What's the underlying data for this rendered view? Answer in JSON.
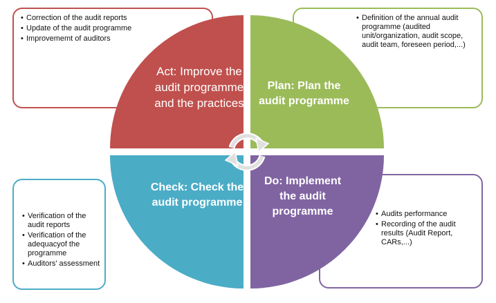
{
  "colors": {
    "act": "#c0504d",
    "plan": "#9bbb59",
    "check": "#4bacc6",
    "do": "#8064a2"
  },
  "quadrants": {
    "act": {
      "label": "Act: Improve the audit programme and the practices"
    },
    "plan": {
      "label": "Plan: Plan the audit programme"
    },
    "check": {
      "label": "Check: Check the audit programme"
    },
    "do": {
      "label": "Do: Implement the audit programme"
    }
  },
  "boxes": {
    "act": [
      "Correction of the audit reports",
      "Update of the audit programme",
      "Improvememt of auditors"
    ],
    "plan": [
      "Definition of the annual audit programme (audited unit/organization, audit scope, audit team, foreseen period,...)"
    ],
    "check": [
      "Verification of the audit reports",
      "Verification of the adequacyof the programme",
      "Auditors'  assessment"
    ],
    "do": [
      "Audits performance",
      "Recording of the audit results (Audit Report, CARs,...)"
    ]
  },
  "icons": {
    "cycle": "circular-arrows-icon"
  }
}
